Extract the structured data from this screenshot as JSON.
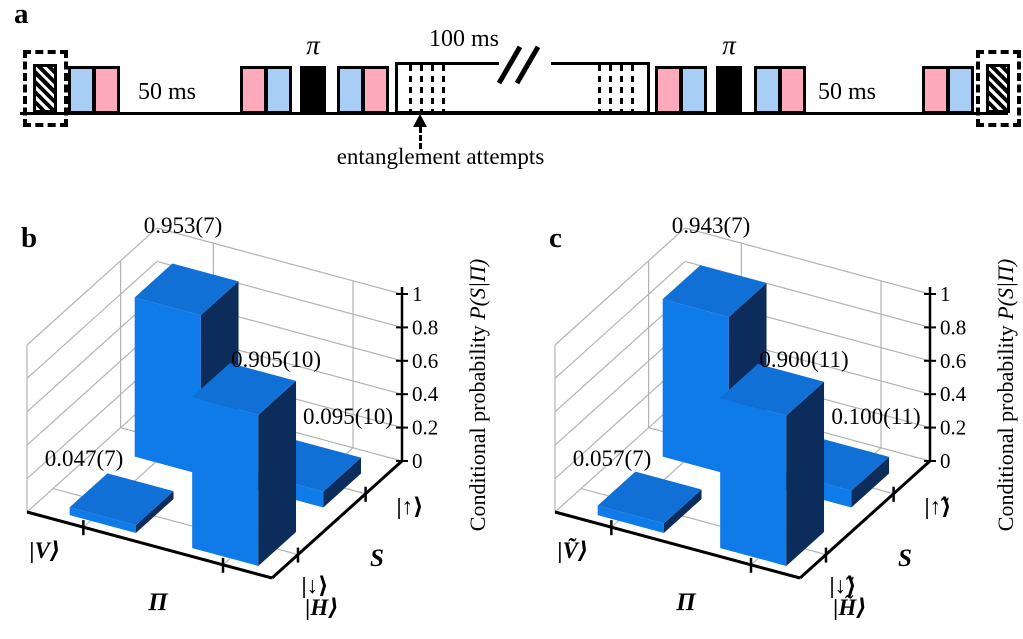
{
  "colors": {
    "pulse_pink": "#FFA9BC",
    "pulse_blue": "#A9CEF6",
    "bar_front": "#0F7BE8",
    "bar_top": "#1070D6",
    "bar_side": "#0C2D5C",
    "grid": "#B3B3B3"
  },
  "panel_a": {
    "label": "a",
    "pi_label": "π",
    "wait_left_label": "50 ms",
    "wait_right_label": "50 ms",
    "window_label": "100 ms",
    "annotation": "entanglement attempts"
  },
  "chart_data": [
    {
      "type": "bar3d",
      "panel_label": "b",
      "x_axis": {
        "title": "Π",
        "categories": [
          "|V⟩",
          "|H⟩"
        ]
      },
      "depth_axis": {
        "title": "S",
        "categories": [
          "|↓⟩",
          "|↑⟩"
        ]
      },
      "z_axis": {
        "title_regular": "Conditional probability ",
        "title_italic": "P(S|Π)",
        "ticks": [
          "0",
          "0.2",
          "0.4",
          "0.6",
          "0.8",
          "1"
        ],
        "range": [
          0,
          1
        ]
      },
      "bars": [
        {
          "x": "|V⟩",
          "depth": "|↓⟩",
          "value": 0.047,
          "label": "0.047(7)"
        },
        {
          "x": "|V⟩",
          "depth": "|↑⟩",
          "value": 0.953,
          "label": "0.953(7)"
        },
        {
          "x": "|H⟩",
          "depth": "|↓⟩",
          "value": 0.905,
          "label": "0.905(10)"
        },
        {
          "x": "|H⟩",
          "depth": "|↑⟩",
          "value": 0.095,
          "label": "0.095(10)"
        }
      ]
    },
    {
      "type": "bar3d",
      "panel_label": "c",
      "x_axis": {
        "title": "Π",
        "categories": [
          "|Ṽ⟩",
          "|H̃⟩"
        ]
      },
      "depth_axis": {
        "title": "S",
        "categories": [
          "|↓̃⟩",
          "|↑̃⟩"
        ]
      },
      "z_axis": {
        "title_regular": "Conditional probability ",
        "title_italic": "P(S|Π)",
        "ticks": [
          "0",
          "0.2",
          "0.4",
          "0.6",
          "0.8",
          "1"
        ],
        "range": [
          0,
          1
        ]
      },
      "bars": [
        {
          "x": "|Ṽ⟩",
          "depth": "|↓̃⟩",
          "value": 0.057,
          "label": "0.057(7)"
        },
        {
          "x": "|Ṽ⟩",
          "depth": "|↑̃⟩",
          "value": 0.943,
          "label": "0.943(7)"
        },
        {
          "x": "|H̃⟩",
          "depth": "|↓̃⟩",
          "value": 0.9,
          "label": "0.900(11)"
        },
        {
          "x": "|H̃⟩",
          "depth": "|↑̃⟩",
          "value": 0.1,
          "label": "0.100(11)"
        }
      ]
    }
  ]
}
